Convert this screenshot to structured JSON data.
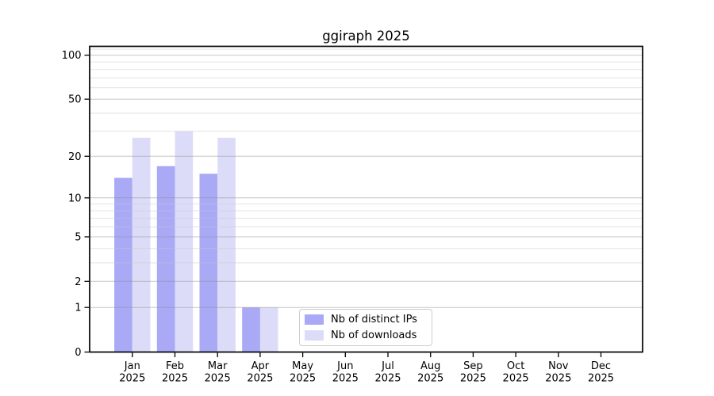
{
  "chart_data": {
    "type": "bar",
    "title": "ggiraph 2025",
    "categories": [
      "Jan",
      "Feb",
      "Mar",
      "Apr",
      "May",
      "Jun",
      "Jul",
      "Aug",
      "Sep",
      "Oct",
      "Nov",
      "Dec"
    ],
    "x_tick_year": "2025",
    "series": [
      {
        "name": "Nb of distinct IPs",
        "color": "#a9a9f6",
        "values": [
          14,
          17,
          15,
          1,
          null,
          null,
          null,
          null,
          null,
          null,
          null,
          null
        ]
      },
      {
        "name": "Nb of downloads",
        "color": "#dcdcf9",
        "values": [
          27,
          30,
          27,
          1,
          null,
          null,
          null,
          null,
          null,
          null,
          null,
          null
        ]
      }
    ],
    "y_axis": {
      "scale": "log1p",
      "max": 115,
      "ticks": [
        0,
        1,
        2,
        5,
        10,
        20,
        50,
        100
      ],
      "minor_gridlines": [
        3,
        4,
        6,
        7,
        8,
        9,
        30,
        40,
        60,
        70,
        80,
        90,
        110
      ]
    },
    "grid": {
      "major_color": "#8c8c8c",
      "minor_color": "#c8c8c8",
      "drawn_over_bars": true
    },
    "axis_color": "#000000",
    "legend": {
      "position": "bottom-center",
      "border_color": "#cccccc",
      "background": "#ffffff"
    },
    "xlabel": "",
    "ylabel": ""
  }
}
